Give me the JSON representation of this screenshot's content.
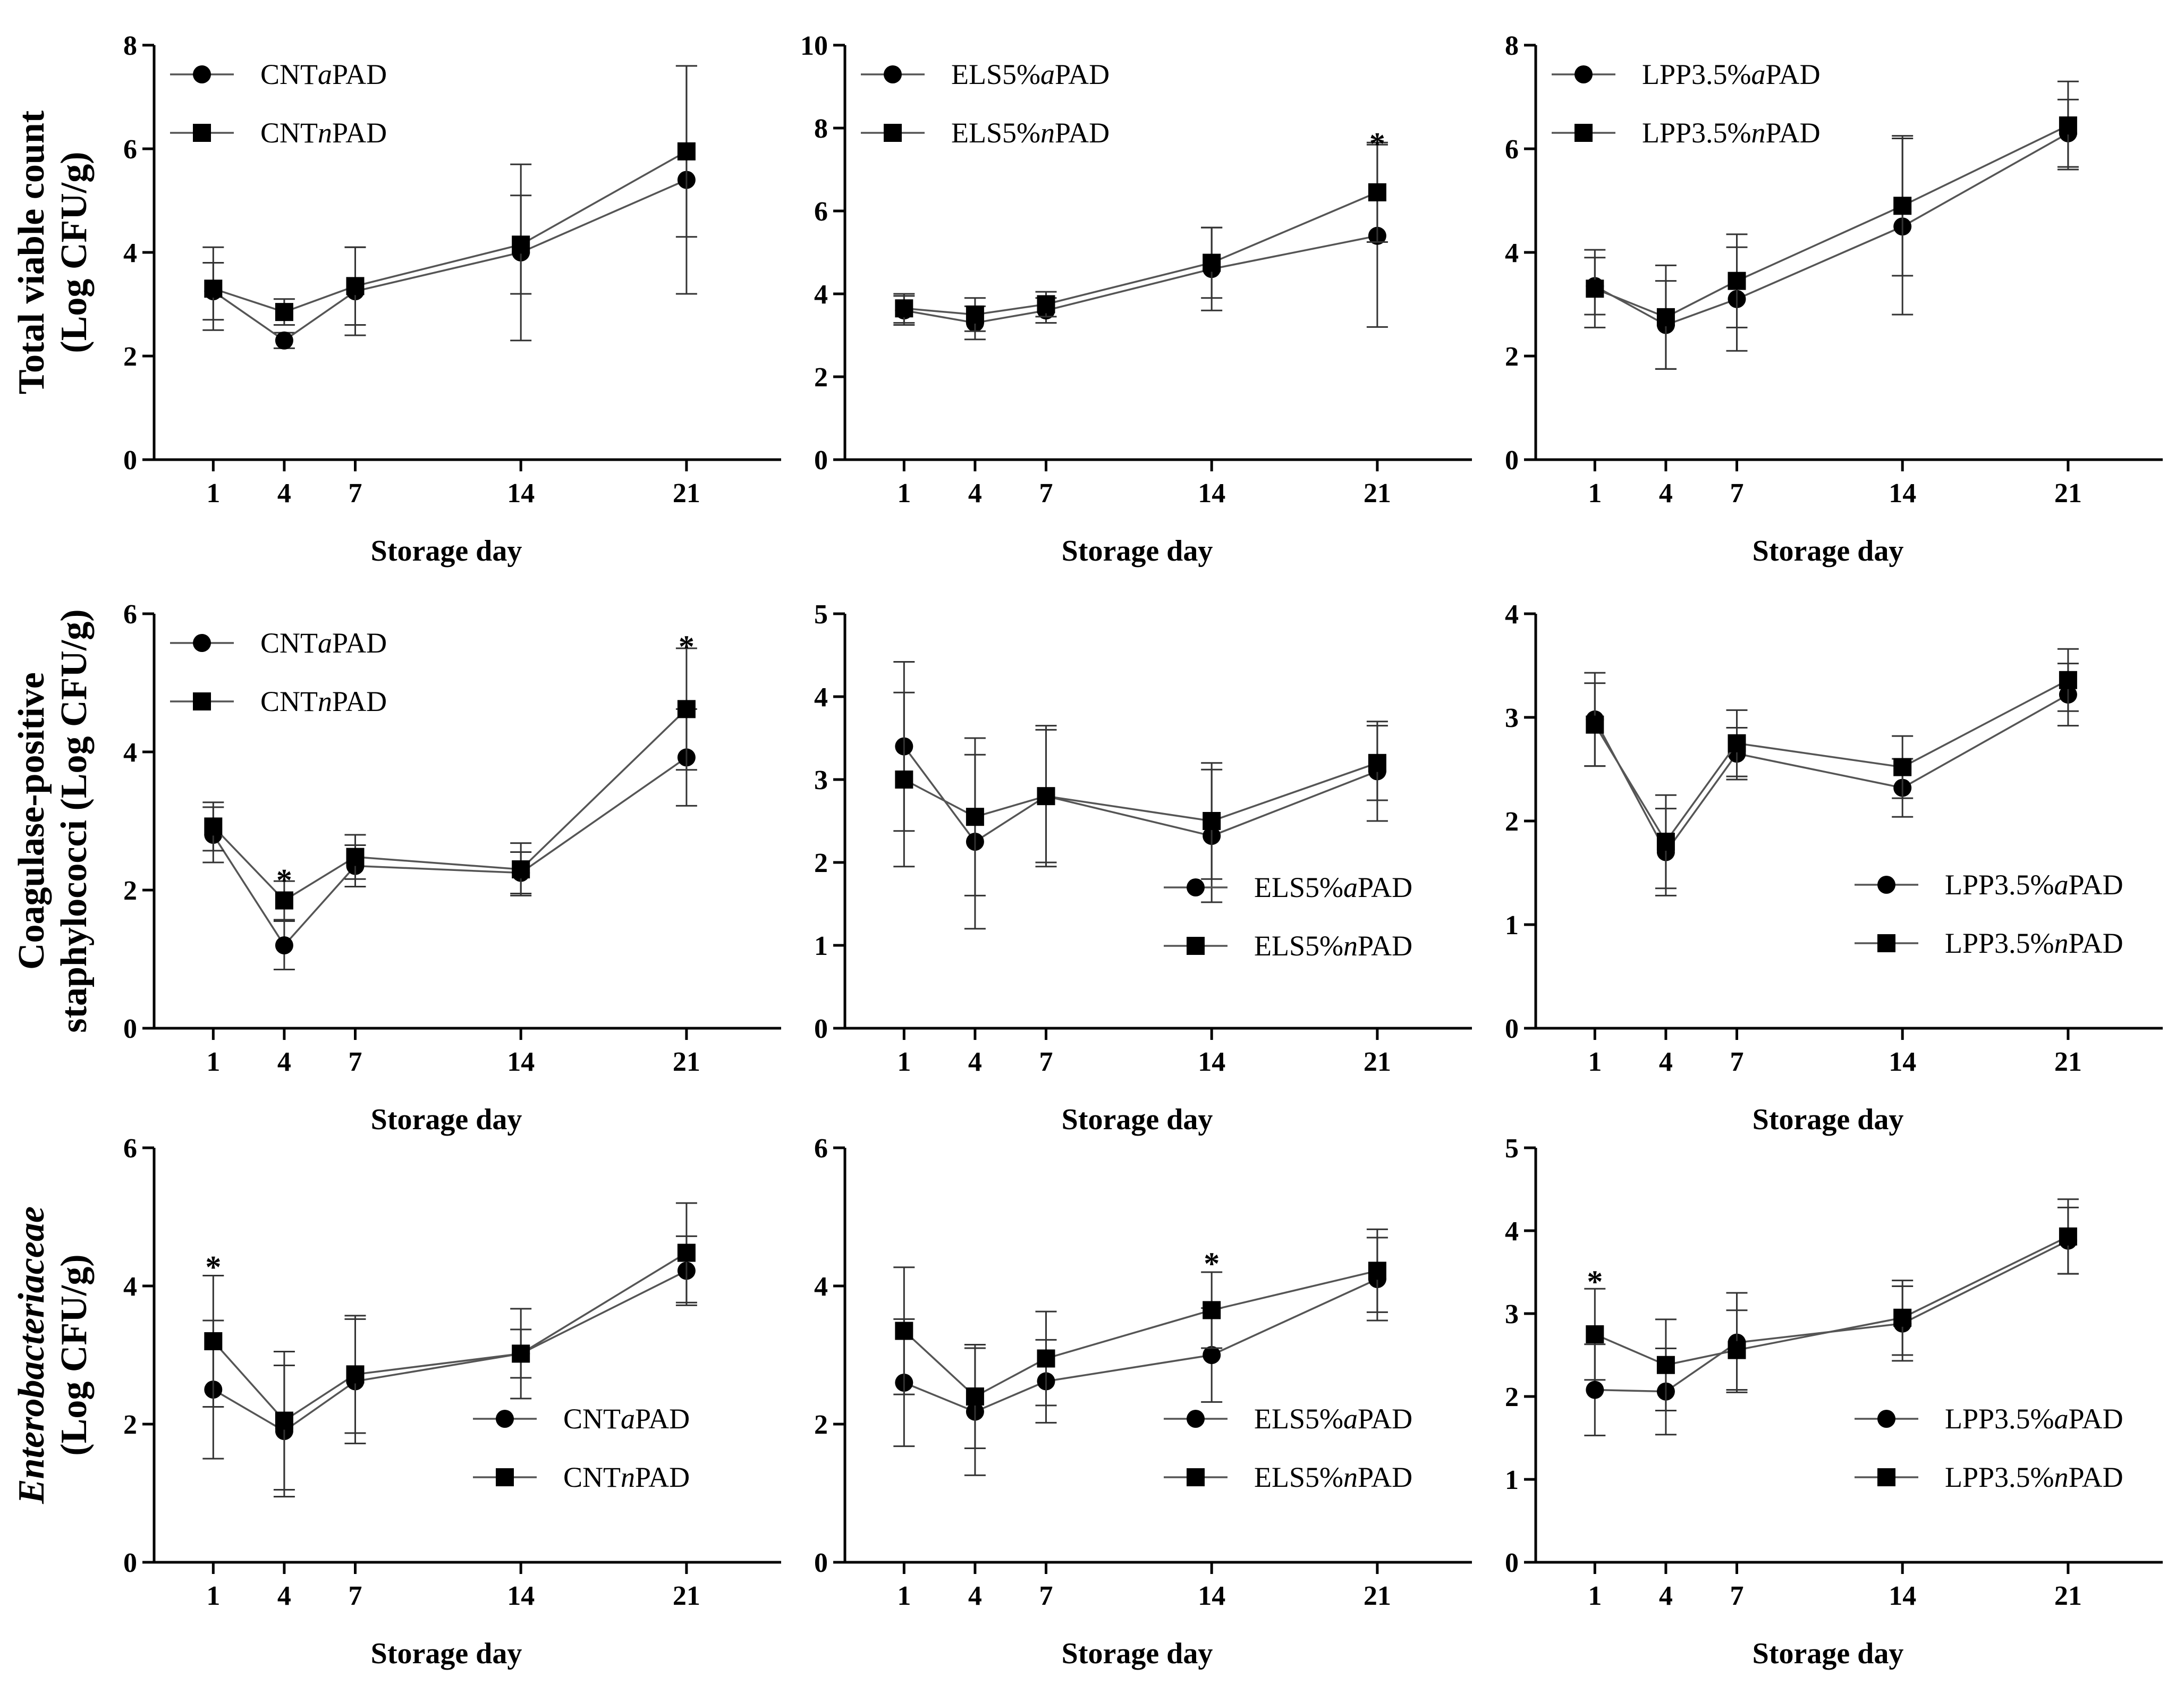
{
  "chart_data": [
    {
      "type": "line",
      "x": [
        1,
        4,
        7,
        14,
        21
      ],
      "xlabel": "Storage day",
      "ylabel": [
        "Total viable count",
        "(Log CFU/g)"
      ],
      "ylim": [
        0,
        8
      ],
      "yticks": [
        0,
        2,
        4,
        6,
        8
      ],
      "legend_pos": "top-left",
      "series": [
        {
          "name": "CNTaPAD",
          "prefix": "CNT",
          "italic": "a",
          "suffix": "PAD",
          "marker": "circle",
          "values": [
            3.25,
            2.3,
            3.25,
            4.0,
            5.4
          ],
          "errors": [
            0.55,
            0.15,
            0.85,
            1.7,
            2.2
          ]
        },
        {
          "name": "CNTnPAD",
          "prefix": "CNT",
          "italic": "n",
          "suffix": "PAD",
          "marker": "square",
          "values": [
            3.3,
            2.85,
            3.35,
            4.15,
            5.95
          ],
          "errors": [
            0.8,
            0.25,
            0.75,
            0.95,
            1.65
          ]
        }
      ],
      "significance_marks": []
    },
    {
      "type": "line",
      "x": [
        1,
        4,
        7,
        14,
        21
      ],
      "xlabel": "Storage day",
      "ylabel": [],
      "ylim": [
        0,
        10
      ],
      "yticks": [
        0,
        2,
        4,
        6,
        8,
        10
      ],
      "legend_pos": "top-left",
      "series": [
        {
          "name": "ELS5%aPAD",
          "prefix": "ELS5%",
          "italic": "a",
          "suffix": "PAD",
          "marker": "circle",
          "values": [
            3.6,
            3.3,
            3.6,
            4.6,
            5.4
          ],
          "errors": [
            0.35,
            0.4,
            0.3,
            1.0,
            2.2
          ]
        },
        {
          "name": "ELS5%nPAD",
          "prefix": "ELS5%",
          "italic": "n",
          "suffix": "PAD",
          "marker": "square",
          "values": [
            3.65,
            3.5,
            3.75,
            4.75,
            6.45
          ],
          "errors": [
            0.35,
            0.4,
            0.3,
            0.85,
            1.2
          ]
        }
      ],
      "significance_marks": [
        {
          "x": 21,
          "y": 7.75,
          "text": "*"
        }
      ]
    },
    {
      "type": "line",
      "x": [
        1,
        4,
        7,
        14,
        21
      ],
      "xlabel": "Storage day",
      "ylabel": [],
      "ylim": [
        0,
        8
      ],
      "yticks": [
        0,
        2,
        4,
        6,
        8
      ],
      "legend_pos": "top-left",
      "series": [
        {
          "name": "LPP3.5%aPAD",
          "prefix": "LPP3.5%",
          "italic": "a",
          "suffix": "PAD",
          "marker": "circle",
          "values": [
            3.35,
            2.6,
            3.1,
            4.5,
            6.3
          ],
          "errors": [
            0.55,
            0.85,
            1.0,
            1.7,
            0.65
          ]
        },
        {
          "name": "LPP3.5%nPAD",
          "prefix": "LPP3.5%",
          "italic": "n",
          "suffix": "PAD",
          "marker": "square",
          "values": [
            3.3,
            2.75,
            3.45,
            4.9,
            6.45
          ],
          "errors": [
            0.75,
            1.0,
            0.9,
            1.35,
            0.85
          ]
        }
      ],
      "significance_marks": []
    },
    {
      "type": "line",
      "x": [
        1,
        4,
        7,
        14,
        21
      ],
      "xlabel": "Storage day",
      "ylabel": [
        "Coagulase-positive",
        "staphylococci (Log CFU/g)"
      ],
      "ylim": [
        0,
        6
      ],
      "yticks": [
        0,
        2,
        4,
        6
      ],
      "legend_pos": "top-left",
      "series": [
        {
          "name": "CNTaPAD",
          "prefix": "CNT",
          "italic": "a",
          "suffix": "PAD",
          "marker": "circle",
          "values": [
            2.8,
            1.2,
            2.35,
            2.25,
            3.92
          ],
          "errors": [
            0.4,
            0.35,
            0.3,
            0.3,
            0.7
          ]
        },
        {
          "name": "CNTnPAD",
          "prefix": "CNT",
          "italic": "n",
          "suffix": "PAD",
          "marker": "square",
          "values": [
            2.92,
            1.85,
            2.48,
            2.3,
            4.62
          ],
          "errors": [
            0.35,
            0.28,
            0.32,
            0.38,
            0.88
          ]
        }
      ],
      "significance_marks": [
        {
          "x": 4,
          "y": 2.22,
          "text": "*"
        },
        {
          "x": 21,
          "y": 5.6,
          "text": "*"
        }
      ]
    },
    {
      "type": "line",
      "x": [
        1,
        4,
        7,
        14,
        21
      ],
      "xlabel": "Storage day",
      "ylabel": [],
      "ylim": [
        0,
        5
      ],
      "yticks": [
        0,
        1,
        2,
        3,
        4,
        5
      ],
      "legend_pos": "bottom-right",
      "series": [
        {
          "name": "ELS5%aPAD",
          "prefix": "ELS5%",
          "italic": "a",
          "suffix": "PAD",
          "marker": "circle",
          "values": [
            3.4,
            2.25,
            2.8,
            2.32,
            3.1
          ],
          "errors": [
            1.02,
            1.05,
            0.85,
            0.8,
            0.6
          ]
        },
        {
          "name": "ELS5%nPAD",
          "prefix": "ELS5%",
          "italic": "n",
          "suffix": "PAD",
          "marker": "square",
          "values": [
            3.0,
            2.55,
            2.8,
            2.5,
            3.2
          ],
          "errors": [
            1.05,
            0.95,
            0.8,
            0.7,
            0.45
          ]
        }
      ],
      "significance_marks": []
    },
    {
      "type": "line",
      "x": [
        1,
        4,
        7,
        14,
        21
      ],
      "xlabel": "Storage day",
      "ylabel": [],
      "ylim": [
        0,
        4
      ],
      "yticks": [
        0,
        1,
        2,
        3,
        4
      ],
      "legend_pos": "bottom-right",
      "series": [
        {
          "name": "LPP3.5%aPAD",
          "prefix": "LPP3.5%",
          "italic": "a",
          "suffix": "PAD",
          "marker": "circle",
          "values": [
            2.98,
            1.7,
            2.65,
            2.32,
            3.22
          ],
          "errors": [
            0.45,
            0.42,
            0.25,
            0.28,
            0.3
          ]
        },
        {
          "name": "LPP3.5%nPAD",
          "prefix": "LPP3.5%",
          "italic": "n",
          "suffix": "PAD",
          "marker": "square",
          "values": [
            2.93,
            1.8,
            2.75,
            2.52,
            3.36
          ],
          "errors": [
            0.4,
            0.45,
            0.32,
            0.3,
            0.3
          ]
        }
      ],
      "significance_marks": []
    },
    {
      "type": "line",
      "x": [
        1,
        4,
        7,
        14,
        21
      ],
      "xlabel": "Storage day",
      "ylabel": [
        "Enterobacteriaceae",
        "(Log CFU/g)"
      ],
      "ylabel_italic_first": true,
      "ylim": [
        0,
        6
      ],
      "yticks": [
        0,
        2,
        4,
        6
      ],
      "legend_pos": "bottom-right",
      "series": [
        {
          "name": "CNTaPAD",
          "prefix": "CNT",
          "italic": "a",
          "suffix": "PAD",
          "marker": "circle",
          "values": [
            2.5,
            1.9,
            2.62,
            3.02,
            4.22
          ],
          "errors": [
            1.0,
            0.95,
            0.9,
            0.65,
            0.5
          ]
        },
        {
          "name": "CNTnPAD",
          "prefix": "CNT",
          "italic": "n",
          "suffix": "PAD",
          "marker": "square",
          "values": [
            3.2,
            2.05,
            2.72,
            3.02,
            4.48
          ],
          "errors": [
            0.95,
            1.0,
            0.85,
            0.35,
            0.72
          ]
        }
      ],
      "significance_marks": [
        {
          "x": 1,
          "y": 4.35,
          "text": "*"
        }
      ]
    },
    {
      "type": "line",
      "x": [
        1,
        4,
        7,
        14,
        21
      ],
      "xlabel": "Storage day",
      "ylabel": [],
      "ylim": [
        0,
        6
      ],
      "yticks": [
        0,
        2,
        4,
        6
      ],
      "legend_pos": "bottom-right",
      "series": [
        {
          "name": "ELS5%aPAD",
          "prefix": "ELS5%",
          "italic": "a",
          "suffix": "PAD",
          "marker": "circle",
          "values": [
            2.6,
            2.18,
            2.62,
            3.0,
            4.1
          ],
          "errors": [
            0.92,
            0.92,
            0.6,
            0.68,
            0.6
          ]
        },
        {
          "name": "ELS5%nPAD",
          "prefix": "ELS5%",
          "italic": "n",
          "suffix": "PAD",
          "marker": "square",
          "values": [
            3.35,
            2.4,
            2.95,
            3.65,
            4.22
          ],
          "errors": [
            0.92,
            0.75,
            0.68,
            0.55,
            0.6
          ]
        }
      ],
      "significance_marks": [
        {
          "x": 14,
          "y": 4.4,
          "text": "*"
        }
      ]
    },
    {
      "type": "line",
      "x": [
        1,
        4,
        7,
        14,
        21
      ],
      "xlabel": "Storage day",
      "ylabel": [],
      "ylim": [
        0,
        5
      ],
      "yticks": [
        0,
        1,
        2,
        3,
        4,
        5
      ],
      "legend_pos": "bottom-right",
      "series": [
        {
          "name": "LPP3.5%aPAD",
          "prefix": "LPP3.5%",
          "italic": "a",
          "suffix": "PAD",
          "marker": "circle",
          "values": [
            2.08,
            2.06,
            2.65,
            2.88,
            3.88
          ],
          "errors": [
            0.55,
            0.52,
            0.6,
            0.45,
            0.4
          ]
        },
        {
          "name": "LPP3.5%nPAD",
          "prefix": "LPP3.5%",
          "italic": "n",
          "suffix": "PAD",
          "marker": "square",
          "values": [
            2.75,
            2.38,
            2.56,
            2.95,
            3.93
          ],
          "errors": [
            0.55,
            0.55,
            0.48,
            0.45,
            0.45
          ]
        }
      ],
      "significance_marks": [
        {
          "x": 1,
          "y": 3.45,
          "text": "*"
        }
      ]
    }
  ]
}
